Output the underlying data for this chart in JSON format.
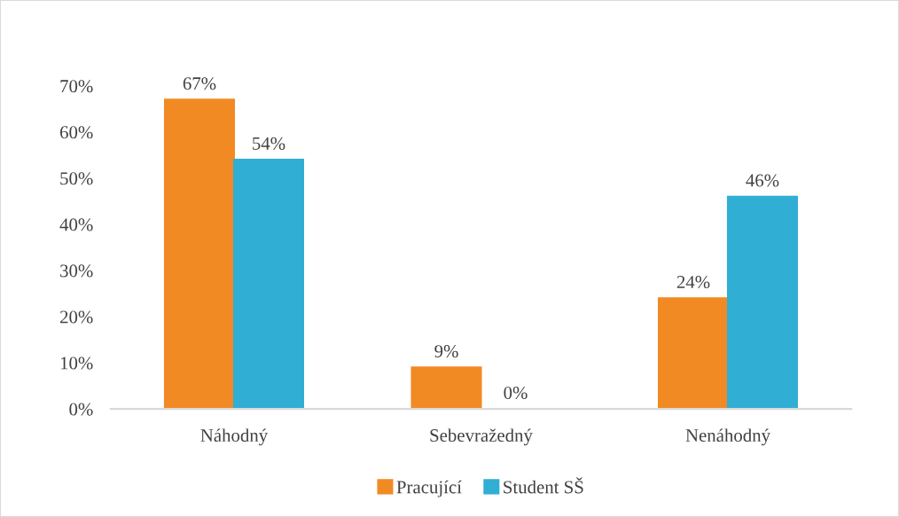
{
  "chart_data": {
    "type": "bar",
    "categories": [
      "Náhodný",
      "Sebevražedný",
      "Nenáhodný"
    ],
    "series": [
      {
        "name": "Pracující",
        "color": "#f28a24",
        "values": [
          67,
          9,
          24
        ],
        "value_labels": [
          "67%",
          "9%",
          "24%"
        ]
      },
      {
        "name": "Student SŠ",
        "color": "#30aed4",
        "values": [
          54,
          0,
          46
        ],
        "value_labels": [
          "54%",
          "0%",
          "46%"
        ]
      }
    ],
    "ylim": [
      0,
      70
    ],
    "yticks": [
      {
        "value": 0,
        "label": "0%"
      },
      {
        "value": 10,
        "label": "10%"
      },
      {
        "value": 20,
        "label": "20%"
      },
      {
        "value": 30,
        "label": "30%"
      },
      {
        "value": 40,
        "label": "40%"
      },
      {
        "value": 50,
        "label": "50%"
      },
      {
        "value": 60,
        "label": "60%"
      },
      {
        "value": 70,
        "label": "70%"
      }
    ],
    "grid": false,
    "legend": "bottom"
  }
}
